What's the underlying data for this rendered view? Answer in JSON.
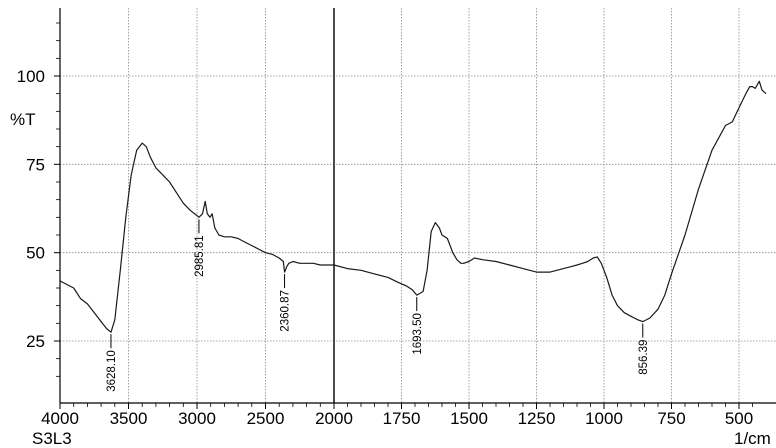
{
  "chart_data": {
    "type": "line",
    "title": "",
    "sample_label": "S3L3",
    "xlabel": "1/cm",
    "ylabel": "%T",
    "x_reversed": true,
    "xlim": [
      4000,
      400
    ],
    "ylim": [
      10,
      120
    ],
    "x_ticks": [
      4000,
      3500,
      3000,
      2500,
      2000,
      1750,
      1500,
      1250,
      1000,
      750,
      500
    ],
    "x_tick_labels": [
      "4000",
      "3500",
      "3000",
      "2500",
      "2000",
      "1750",
      "1500",
      "1250",
      "1000",
      "750",
      "500"
    ],
    "y_ticks": [
      25,
      50,
      75,
      100
    ],
    "y_tick_labels": [
      "25",
      "50",
      "75",
      "100"
    ],
    "grid": true,
    "line_color": "#1a1a1a",
    "grid_color": "#8c8c8c",
    "series": [
      {
        "x": [
          4000,
          3950,
          3900,
          3850,
          3800,
          3750,
          3700,
          3660,
          3628.1,
          3600,
          3560,
          3520,
          3480,
          3440,
          3400,
          3370,
          3340,
          3300,
          3250,
          3200,
          3150,
          3100,
          3050,
          3000,
          2985.81,
          2960,
          2940,
          2925,
          2905,
          2890,
          2870,
          2855,
          2840,
          2800,
          2750,
          2700,
          2650,
          2600,
          2550,
          2500,
          2450,
          2400,
          2370,
          2360.87,
          2345,
          2330,
          2300,
          2250,
          2200,
          2150,
          2100,
          2050,
          2000,
          1950,
          1900,
          1850,
          1800,
          1760,
          1730,
          1710,
          1693.5,
          1670,
          1655,
          1640,
          1625,
          1610,
          1600,
          1580,
          1560,
          1545,
          1530,
          1520,
          1500,
          1480,
          1450,
          1400,
          1350,
          1300,
          1250,
          1200,
          1175,
          1150,
          1125,
          1100,
          1080,
          1060,
          1040,
          1025,
          1010,
          990,
          970,
          950,
          925,
          900,
          875,
          856.39,
          830,
          800,
          775,
          750,
          700,
          650,
          600,
          550,
          525,
          500,
          475,
          460,
          450,
          440,
          425,
          415,
          400
        ],
        "y": [
          42,
          41,
          40,
          37,
          35.5,
          33,
          30.5,
          28.5,
          27.5,
          31,
          45,
          60,
          72,
          79,
          81,
          80,
          77,
          74,
          72,
          70,
          67,
          64,
          62,
          60.5,
          60,
          61,
          64.5,
          61,
          60,
          61,
          57,
          56,
          55,
          54.5,
          54.5,
          54,
          53,
          52,
          51,
          50,
          49.5,
          48.5,
          47.5,
          44.5,
          46,
          47,
          47.5,
          47,
          47,
          47,
          46.5,
          46.5,
          46.5,
          45.5,
          45,
          44,
          43,
          41.5,
          40.5,
          39.5,
          38,
          39,
          45,
          56,
          58.5,
          57,
          55,
          54,
          50,
          48,
          47,
          47,
          47.5,
          48.5,
          48,
          47.5,
          46.5,
          45.5,
          44.5,
          44.5,
          45,
          45.5,
          46,
          46.5,
          47,
          47.5,
          48.5,
          48.8,
          47,
          43,
          38,
          35,
          33,
          32,
          31,
          30.5,
          31.5,
          34,
          38,
          44,
          55,
          68,
          79,
          86,
          87,
          91,
          95,
          97,
          97,
          96.5,
          98.5,
          96,
          95
        ]
      }
    ],
    "annotations": [
      {
        "x": 3628.1,
        "label": "3628.10"
      },
      {
        "x": 2985.81,
        "label": "2985.81"
      },
      {
        "x": 2360.87,
        "label": "2360.87"
      },
      {
        "x": 1693.5,
        "label": "1693.50"
      },
      {
        "x": 856.39,
        "label": "856.39"
      }
    ]
  }
}
